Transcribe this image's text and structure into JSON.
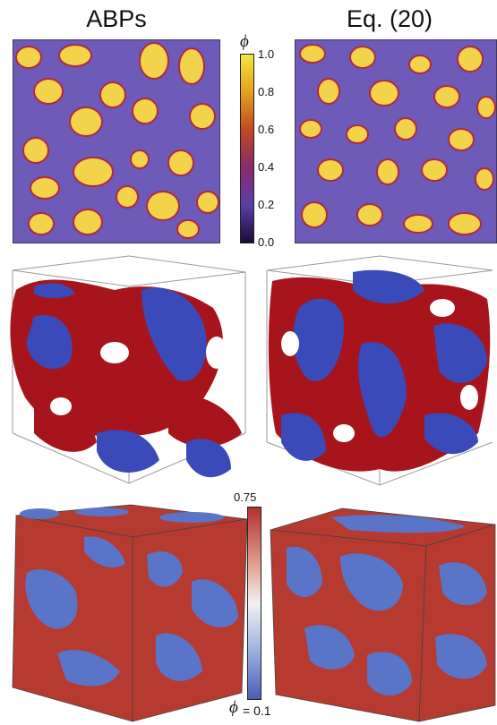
{
  "columns": [
    {
      "title": "ABPs"
    },
    {
      "title": "Eq. (20)"
    }
  ],
  "colorbar_top": {
    "symbol": "ϕ",
    "ticks": [
      "1.0",
      "0.8",
      "0.6",
      "0.4",
      "0.2",
      "0.0"
    ],
    "colors": [
      "#f4e640",
      "#e5a020",
      "#c04a20",
      "#8a2a6a",
      "#5a3ea8",
      "#1a0a38"
    ]
  },
  "colorbar_bottom": {
    "top_label": "0.75",
    "bottom_symbol": "ϕ",
    "bottom_value": "= 0.1",
    "colors": [
      "#b2302c",
      "#e0a090",
      "#f2f2f2",
      "#9ab0e0",
      "#4a5ab8"
    ]
  },
  "colors": {
    "yellow_domain": "#f2d34a",
    "purple_background": "#6e5ab8",
    "red_surface": "#a8141c",
    "blue_surface": "#3a4ab8",
    "dense_cube": "#b63a30",
    "dilute_cube": "#5a74c8"
  }
}
